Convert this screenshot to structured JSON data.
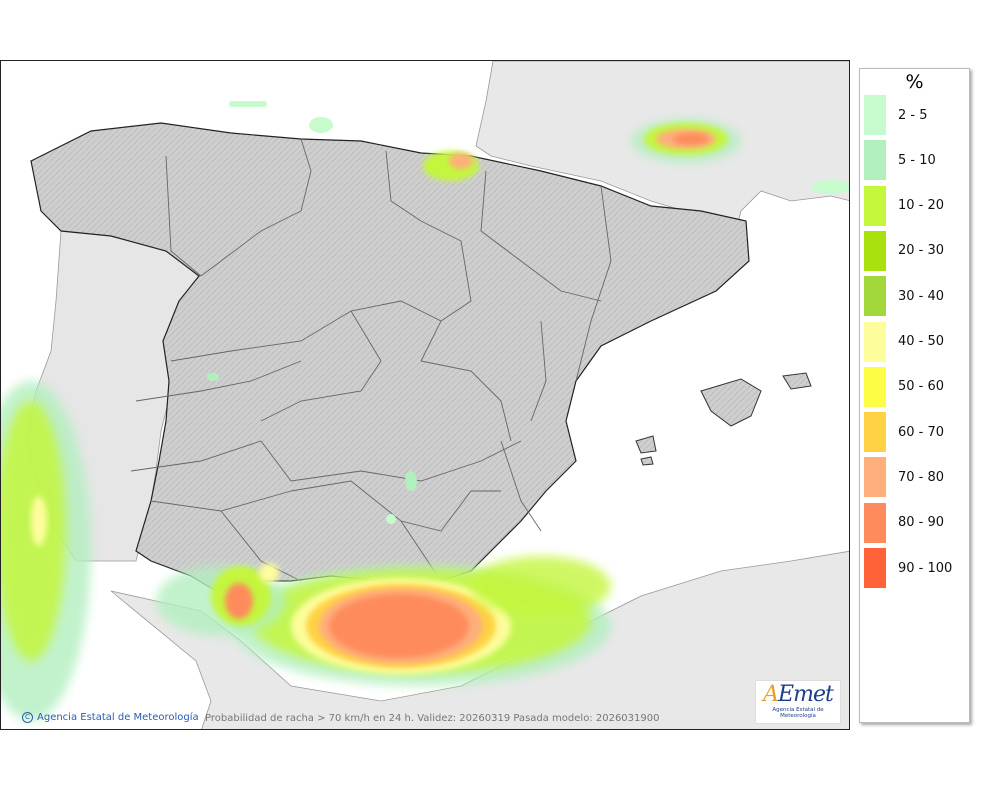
{
  "legend": {
    "unit": "%",
    "classes": [
      {
        "label": "2 - 5",
        "color": "#c7fbce"
      },
      {
        "label": "5 - 10",
        "color": "#b2efbf"
      },
      {
        "label": "10 - 20",
        "color": "#c4f63c"
      },
      {
        "label": "20 - 30",
        "color": "#a9e10e"
      },
      {
        "label": "30 - 40",
        "color": "#a2d83c"
      },
      {
        "label": "40 - 50",
        "color": "#fdfd9b"
      },
      {
        "label": "50 - 60",
        "color": "#fdfd45"
      },
      {
        "label": "60 - 70",
        "color": "#fed243"
      },
      {
        "label": "70 - 80",
        "color": "#feaf7c"
      },
      {
        "label": "80 - 90",
        "color": "#fe8b5b"
      },
      {
        "label": "90 - 100",
        "color": "#fe6236"
      }
    ]
  },
  "map": {
    "caption": "Probabilidad de racha > 70 km/h en 24 h. Validez: 20260319 Pasada modelo: 2026031900",
    "credit": "Agencia Estatal de Meteorología",
    "credit_symbol": "C",
    "logo": {
      "brand_a": "A",
      "brand_rest": "Emet",
      "subtitle": "Agencia Estatal de Meteorología"
    }
  }
}
